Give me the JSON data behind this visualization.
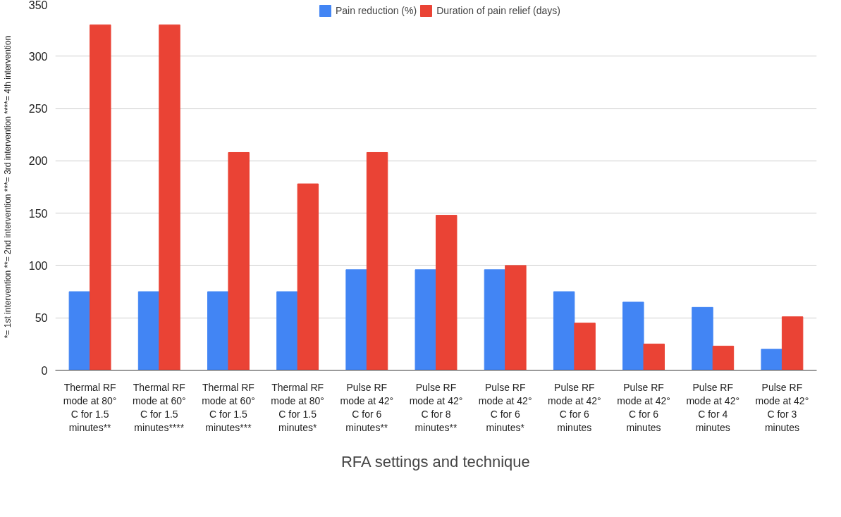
{
  "chart_data": {
    "type": "bar",
    "categories": [
      "Thermal RF mode at 80° C for 1.5 minutes**",
      "Thermal RF mode at 60° C for 1.5 minutes****",
      "Thermal RF mode at 60° C for 1.5 minutes***",
      "Thermal RF mode at 80° C for 1.5 minutes*",
      "Pulse RF mode at 42° C for 6 minutes**",
      "Pulse RF mode at 42° C for 8 minutes**",
      "Pulse RF mode at 42° C for 6 minutes*",
      "Pulse RF mode at 42° C for 6 minutes",
      "Pulse RF mode at 42° C for 6 minutes",
      "Pulse RF mode at 42° C for 4 minutes",
      "Pulse RF mode at 42° C for 3 minutes"
    ],
    "series": [
      {
        "name": "Pain reduction (%)",
        "color": "#4285f4",
        "values": [
          75,
          75,
          75,
          75,
          96,
          96,
          96,
          75,
          65,
          60,
          20
        ]
      },
      {
        "name": "Duration of pain relief (days)",
        "color": "#ea4335",
        "values": [
          330,
          330,
          208,
          178,
          208,
          148,
          100,
          45,
          25,
          23,
          51
        ]
      }
    ],
    "xlabel": "RFA settings and technique",
    "annotations": [
      "*= 1st intervention **= 2nd intervention ***= 3rd intervention ****= 4th intervention"
    ],
    "ylim": [
      0,
      350
    ],
    "yticks": [
      0,
      50,
      100,
      150,
      200,
      250,
      300,
      350
    ],
    "grid": "y",
    "legend": "top"
  }
}
